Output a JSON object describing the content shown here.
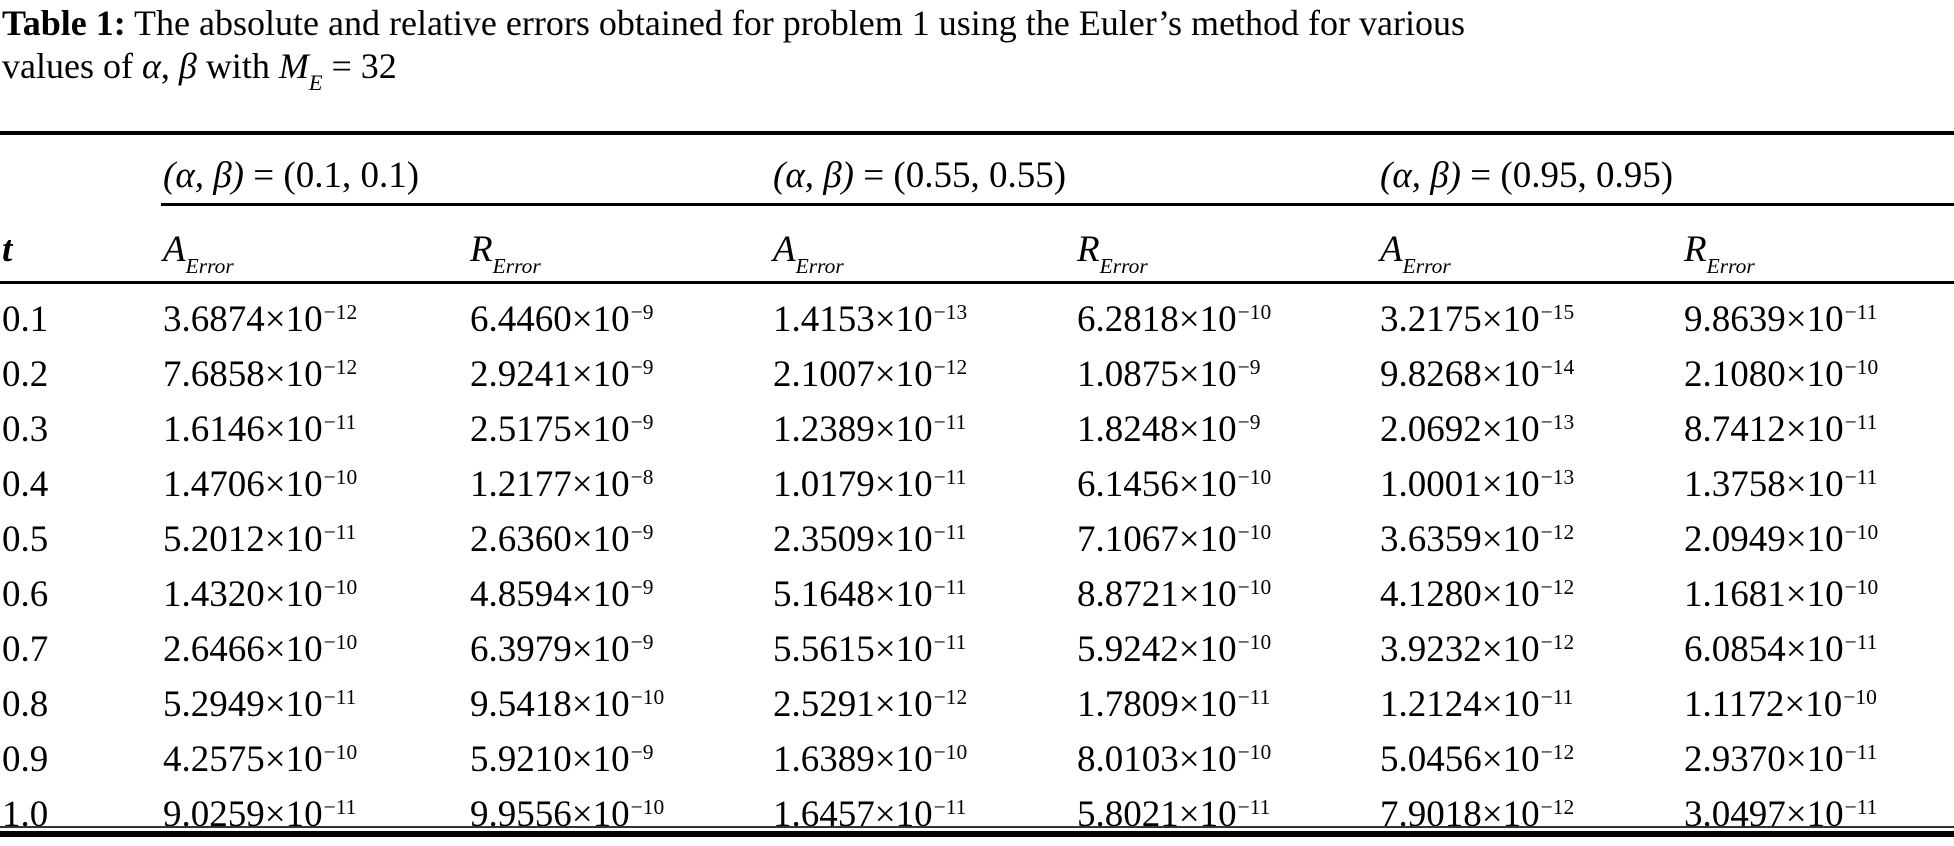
{
  "colors": {
    "text": "#000000",
    "background": "#ffffff",
    "rule": "#000000"
  },
  "caption": {
    "parts": [
      {
        "text": "Table 1:",
        "style": "bold"
      },
      {
        "text": " The absolute and relative errors obtained for problem 1 using the Euler’s method for various",
        "style": "normal"
      },
      {
        "break": true
      },
      {
        "text": "values of ",
        "style": "normal"
      },
      {
        "text": "α",
        "style": "italic"
      },
      {
        "text": ",  ",
        "style": "normal"
      },
      {
        "text": "β",
        "style": "italic"
      },
      {
        "text": " with ",
        "style": "normal"
      },
      {
        "text": "M",
        "style": "italic"
      },
      {
        "text": "E",
        "style": "subscript"
      },
      {
        "text": " = 32",
        "style": "normal"
      }
    ]
  },
  "table": {
    "notation": {
      "times": "×10"
    },
    "t_header": "t",
    "groups": [
      {
        "math": "(α, β)",
        "eq": " = ",
        "value": "(0.1, 0.1)"
      },
      {
        "math": "(α, β)",
        "eq": " = ",
        "value": "(0.55, 0.55)"
      },
      {
        "math": "(α, β)",
        "eq": " = ",
        "value": "(0.95, 0.95)"
      }
    ],
    "col_headers": [
      {
        "main": "A",
        "sub": "Error"
      },
      {
        "main": "R",
        "sub": "Error"
      },
      {
        "main": "A",
        "sub": "Error"
      },
      {
        "main": "R",
        "sub": "Error"
      },
      {
        "main": "A",
        "sub": "Error"
      },
      {
        "main": "R",
        "sub": "Error"
      }
    ],
    "rows": [
      {
        "t": "0.1",
        "values": [
          {
            "m": "3.6874",
            "e": "−12"
          },
          {
            "m": "6.4460",
            "e": "−9"
          },
          {
            "m": "1.4153",
            "e": "−13"
          },
          {
            "m": "6.2818",
            "e": "−10"
          },
          {
            "m": "3.2175",
            "e": "−15"
          },
          {
            "m": "9.8639",
            "e": "−11"
          }
        ]
      },
      {
        "t": "0.2",
        "values": [
          {
            "m": "7.6858",
            "e": "−12"
          },
          {
            "m": "2.9241",
            "e": "−9"
          },
          {
            "m": "2.1007",
            "e": "−12"
          },
          {
            "m": "1.0875",
            "e": "−9"
          },
          {
            "m": "9.8268",
            "e": "−14"
          },
          {
            "m": "2.1080",
            "e": "−10"
          }
        ]
      },
      {
        "t": "0.3",
        "values": [
          {
            "m": "1.6146",
            "e": "−11"
          },
          {
            "m": "2.5175",
            "e": "−9"
          },
          {
            "m": "1.2389",
            "e": "−11"
          },
          {
            "m": "1.8248",
            "e": "−9"
          },
          {
            "m": "2.0692",
            "e": "−13"
          },
          {
            "m": "8.7412",
            "e": "−11"
          }
        ]
      },
      {
        "t": "0.4",
        "values": [
          {
            "m": "1.4706",
            "e": "−10"
          },
          {
            "m": "1.2177",
            "e": "−8"
          },
          {
            "m": "1.0179",
            "e": "−11"
          },
          {
            "m": "6.1456",
            "e": "−10"
          },
          {
            "m": "1.0001",
            "e": "−13"
          },
          {
            "m": "1.3758",
            "e": "−11"
          }
        ]
      },
      {
        "t": "0.5",
        "values": [
          {
            "m": "5.2012",
            "e": "−11"
          },
          {
            "m": "2.6360",
            "e": "−9"
          },
          {
            "m": "2.3509",
            "e": "−11"
          },
          {
            "m": "7.1067",
            "e": "−10"
          },
          {
            "m": "3.6359",
            "e": "−12"
          },
          {
            "m": "2.0949",
            "e": "−10"
          }
        ]
      },
      {
        "t": "0.6",
        "values": [
          {
            "m": "1.4320",
            "e": "−10"
          },
          {
            "m": "4.8594",
            "e": "−9"
          },
          {
            "m": "5.1648",
            "e": "−11"
          },
          {
            "m": "8.8721",
            "e": "−10"
          },
          {
            "m": "4.1280",
            "e": "−12"
          },
          {
            "m": "1.1681",
            "e": "−10"
          }
        ]
      },
      {
        "t": "0.7",
        "values": [
          {
            "m": "2.6466",
            "e": "−10"
          },
          {
            "m": "6.3979",
            "e": "−9"
          },
          {
            "m": "5.5615",
            "e": "−11"
          },
          {
            "m": "5.9242",
            "e": "−10"
          },
          {
            "m": "3.9232",
            "e": "−12"
          },
          {
            "m": "6.0854",
            "e": "−11"
          }
        ]
      },
      {
        "t": "0.8",
        "values": [
          {
            "m": "5.2949",
            "e": "−11"
          },
          {
            "m": "9.5418",
            "e": "−10"
          },
          {
            "m": "2.5291",
            "e": "−12"
          },
          {
            "m": "1.7809",
            "e": "−11"
          },
          {
            "m": "1.2124",
            "e": "−11"
          },
          {
            "m": "1.1172",
            "e": "−10"
          }
        ]
      },
      {
        "t": "0.9",
        "values": [
          {
            "m": "4.2575",
            "e": "−10"
          },
          {
            "m": "5.9210",
            "e": "−9"
          },
          {
            "m": "1.6389",
            "e": "−10"
          },
          {
            "m": "8.0103",
            "e": "−10"
          },
          {
            "m": "5.0456",
            "e": "−12"
          },
          {
            "m": "2.9370",
            "e": "−11"
          }
        ]
      },
      {
        "t": "1.0",
        "values": [
          {
            "m": "9.0259",
            "e": "−11"
          },
          {
            "m": "9.9556",
            "e": "−10"
          },
          {
            "m": "1.6457",
            "e": "−11"
          },
          {
            "m": "5.8021",
            "e": "−11"
          },
          {
            "m": "7.9018",
            "e": "−12"
          },
          {
            "m": "3.0497",
            "e": "−11"
          }
        ]
      }
    ]
  }
}
